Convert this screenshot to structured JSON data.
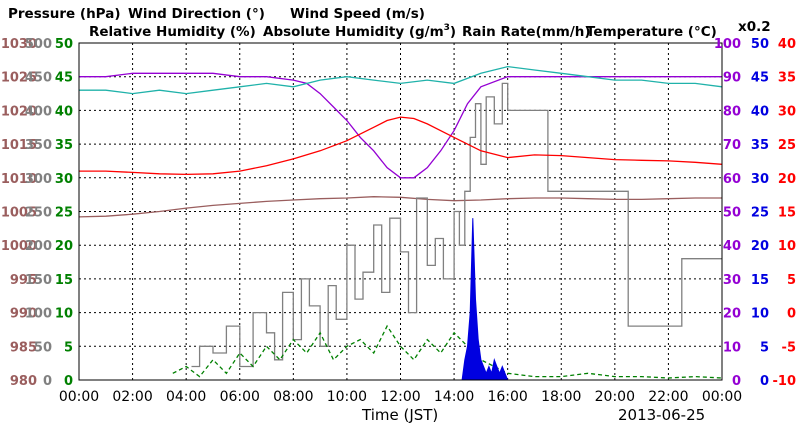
{
  "colors": {
    "pressure": "#9a5e5e",
    "wind_direction": "#808080",
    "wind_speed": "#008000",
    "relative_humidity": "#9400d3",
    "absolute_humidity": "#20b2aa",
    "rain_rate": "#0000e0",
    "temperature": "#ff0000"
  },
  "legend": {
    "pressure": "Pressure (hPa)",
    "wind_direction": "Wind Direction (°)",
    "wind_speed": "Wind Speed (m/s)",
    "relative_humidity": "Relative Humidity (%)",
    "absolute_humidity_base": "Absolute Humidity (g/m",
    "absolute_humidity_sup": "3",
    "absolute_humidity_close": ")",
    "rain_rate": "Rain Rate(mm/h)",
    "temperature": "Temperature (°C)",
    "abs_humidity_factor": "x0.2"
  },
  "xlabel": "Time (JST)",
  "date": "2013-06-25",
  "chart_data": {
    "type": "line",
    "x_ticks": [
      "00:00",
      "02:00",
      "04:00",
      "06:00",
      "08:00",
      "10:00",
      "12:00",
      "14:00",
      "16:00",
      "18:00",
      "20:00",
      "22:00",
      "00:00"
    ],
    "axes": {
      "pressure": {
        "ticks": [
          "1030",
          "1025",
          "1020",
          "1015",
          "1010",
          "1005",
          "1000",
          "995",
          "990",
          "985",
          "980"
        ],
        "range": [
          980,
          1030
        ]
      },
      "wind_direction": {
        "ticks": [
          "500",
          "450",
          "400",
          "350",
          "300",
          "250",
          "200",
          "150",
          "100",
          "50",
          "0"
        ],
        "range": [
          0,
          500
        ]
      },
      "wind_speed": {
        "ticks": [
          "50",
          "45",
          "40",
          "35",
          "30",
          "25",
          "20",
          "15",
          "10",
          "5",
          "0"
        ],
        "range": [
          0,
          50
        ]
      },
      "relative_humidity": {
        "ticks": [
          "100",
          "90",
          "80",
          "70",
          "60",
          "50",
          "40",
          "30",
          "20",
          "10",
          "0"
        ],
        "range": [
          0,
          100
        ]
      },
      "rain_rate": {
        "ticks": [
          "50",
          "45",
          "40",
          "35",
          "30",
          "25",
          "20",
          "15",
          "10",
          "5",
          "0"
        ],
        "range": [
          0,
          50
        ]
      },
      "temperature": {
        "ticks": [
          "40",
          "35",
          "30",
          "25",
          "20",
          "15",
          "10",
          "5",
          "0",
          "-5",
          "-10"
        ],
        "range": [
          -10,
          40
        ]
      }
    },
    "x_range": [
      0,
      24
    ],
    "grid": true,
    "series": [
      {
        "name": "Pressure (hPa)",
        "axis": "pressure",
        "x": [
          0,
          1,
          2,
          3,
          4,
          5,
          6,
          7,
          8,
          9,
          10,
          11,
          12,
          13,
          14,
          15,
          16,
          17,
          18,
          19,
          20,
          21,
          22,
          23,
          24
        ],
        "y": [
          1004.2,
          1004.3,
          1004.6,
          1005,
          1005.5,
          1005.9,
          1006.2,
          1006.5,
          1006.7,
          1006.9,
          1007,
          1007.2,
          1007.1,
          1006.8,
          1006.6,
          1006.7,
          1006.9,
          1007,
          1007,
          1006.9,
          1006.8,
          1006.8,
          1006.9,
          1007,
          1007
        ]
      },
      {
        "name": "Wind Direction (°)",
        "axis": "wind_direction",
        "step": true,
        "x": [
          4.2,
          4.5,
          5,
          5.5,
          6,
          6.5,
          7,
          7.3,
          7.6,
          8,
          8.3,
          8.6,
          9,
          9.3,
          9.6,
          10,
          10.3,
          10.6,
          11,
          11.3,
          11.6,
          12,
          12.3,
          12.6,
          13,
          13.3,
          13.6,
          14,
          14.2,
          14.4,
          14.6,
          14.8,
          15,
          15.2,
          15.5,
          15.8,
          16,
          16.3,
          16.7,
          17,
          17.5,
          18,
          18.5,
          19,
          19.5,
          20,
          20.5,
          21,
          21.5,
          22,
          22.5,
          23,
          23.5,
          24
        ],
        "y": [
          20,
          50,
          40,
          80,
          20,
          100,
          70,
          30,
          130,
          60,
          150,
          110,
          50,
          140,
          90,
          200,
          120,
          160,
          230,
          130,
          240,
          190,
          100,
          270,
          170,
          210,
          150,
          250,
          200,
          280,
          360,
          410,
          320,
          420,
          380,
          440,
          400,
          400,
          400,
          400,
          280,
          280,
          280,
          280,
          280,
          280,
          80,
          80,
          80,
          80,
          180,
          180,
          180,
          180
        ]
      },
      {
        "name": "Wind Speed (m/s)",
        "axis": "wind_speed",
        "dashed": true,
        "x": [
          3.5,
          4,
          4.5,
          5,
          5.5,
          6,
          6.5,
          7,
          7.5,
          8,
          8.5,
          9,
          9.5,
          10,
          10.5,
          11,
          11.5,
          12,
          12.5,
          13,
          13.5,
          14,
          14.5,
          15,
          15.5,
          16,
          17,
          18,
          19,
          20,
          21,
          22,
          23,
          24
        ],
        "y": [
          1,
          2,
          0.5,
          3,
          1,
          4,
          2,
          5,
          3,
          6,
          4,
          7,
          3,
          5,
          6,
          4,
          8,
          5,
          3,
          6,
          4,
          7,
          5,
          3,
          2,
          1,
          0.5,
          0.5,
          1,
          0.5,
          0.5,
          0.3,
          0.5,
          0.3
        ]
      },
      {
        "name": "Relative Humidity (%)",
        "axis": "relative_humidity",
        "x": [
          0,
          1,
          2,
          3,
          4,
          5,
          6,
          7,
          8,
          8.5,
          9,
          9.5,
          10,
          10.5,
          11,
          11.5,
          12,
          12.5,
          13,
          13.5,
          14,
          14.5,
          15,
          16,
          17,
          18,
          19,
          20,
          21,
          22,
          23,
          24
        ],
        "y": [
          90,
          90,
          91,
          91,
          91,
          91,
          90,
          90,
          89,
          88,
          85,
          81,
          77,
          72,
          68,
          63,
          60,
          60,
          63,
          68,
          74,
          82,
          87,
          90,
          90,
          90,
          90,
          90,
          90,
          90,
          90,
          90
        ]
      },
      {
        "name": "Absolute Humidity (g/m3)",
        "axis": "relative_humidity",
        "factor": 0.2,
        "x": [
          0,
          1,
          2,
          3,
          4,
          5,
          6,
          7,
          8,
          9,
          10,
          11,
          12,
          13,
          14,
          15,
          16,
          17,
          18,
          19,
          20,
          21,
          22,
          23,
          24
        ],
        "y": [
          86,
          86,
          85,
          86,
          85,
          86,
          87,
          88,
          87,
          89,
          90,
          89,
          88,
          89,
          88,
          91,
          93,
          92,
          91,
          90,
          89,
          89,
          88,
          88,
          87
        ]
      },
      {
        "name": "Rain Rate(mm/h)",
        "axis": "rain_rate",
        "filled": true,
        "x": [
          14.3,
          14.4,
          14.5,
          14.6,
          14.7,
          14.8,
          14.9,
          15,
          15.1,
          15.2,
          15.3,
          15.4,
          15.5,
          15.6,
          15.7,
          15.8,
          15.9,
          16,
          16.1
        ],
        "y": [
          0,
          3,
          5,
          10,
          24,
          12,
          6,
          3,
          2,
          1,
          2,
          1,
          3,
          2,
          1,
          2,
          1,
          0,
          0
        ]
      },
      {
        "name": "Temperature (°C)",
        "axis": "temperature",
        "x": [
          0,
          1,
          2,
          3,
          4,
          5,
          6,
          7,
          8,
          9,
          10,
          11,
          11.5,
          12,
          12.5,
          13,
          14,
          15,
          16,
          17,
          18,
          19,
          20,
          21,
          22,
          23,
          24
        ],
        "y": [
          21,
          21,
          20.8,
          20.6,
          20.5,
          20.6,
          21,
          21.8,
          22.8,
          24,
          25.5,
          27.5,
          28.5,
          29,
          28.8,
          28,
          26,
          24,
          23,
          23.4,
          23.3,
          23,
          22.7,
          22.6,
          22.5,
          22.3,
          22
        ]
      }
    ]
  }
}
